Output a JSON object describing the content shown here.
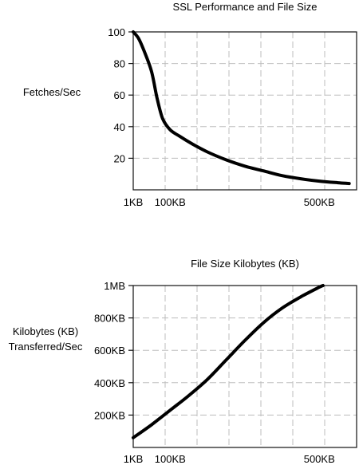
{
  "chart_data": [
    {
      "type": "line",
      "title": "SSL Performance and File Size",
      "xlabel": "",
      "ylabel": "Fetches/Sec",
      "xlim": [
        1,
        600
      ],
      "ylim": [
        0,
        100
      ],
      "x_ticks": [
        1,
        100,
        500
      ],
      "x_tick_labels": [
        "1KB",
        "100KB",
        "500KB"
      ],
      "y_ticks": [
        20,
        40,
        60,
        80,
        100
      ],
      "y_tick_labels": [
        "20",
        "40",
        "60",
        "80",
        "100"
      ],
      "grid": true,
      "series": [
        {
          "x": [
            1,
            15,
            30,
            50,
            65,
            80,
            100,
            125,
            160,
            200,
            250,
            300,
            350,
            400,
            450,
            500,
            550,
            580
          ],
          "y": [
            100,
            96,
            88,
            75,
            58,
            45,
            38,
            34,
            29,
            24,
            19,
            15,
            12,
            9,
            7,
            5.5,
            4.5,
            4
          ]
        }
      ]
    },
    {
      "type": "line",
      "title": "File Size Kilobytes (KB)",
      "xlabel": "",
      "ylabel": "Kilobytes (KB) Transferred/Sec",
      "ylabel_lines": [
        "Kilobytes (KB)",
        "Transferred/Sec"
      ],
      "xlim": [
        1,
        600
      ],
      "ylim": [
        0,
        1000
      ],
      "x_ticks": [
        1,
        100,
        500
      ],
      "x_tick_labels": [
        "1KB",
        "100KB",
        "500KB"
      ],
      "y_ticks": [
        200,
        400,
        600,
        800,
        1000
      ],
      "y_tick_labels": [
        "200KB",
        "400KB",
        "600KB",
        "800KB",
        "1MB"
      ],
      "grid": true,
      "series": [
        {
          "x": [
            1,
            50,
            100,
            150,
            200,
            250,
            300,
            350,
            400,
            450,
            500,
            510
          ],
          "y": [
            60,
            140,
            230,
            320,
            420,
            540,
            660,
            770,
            860,
            930,
            990,
            1000
          ]
        }
      ]
    }
  ]
}
